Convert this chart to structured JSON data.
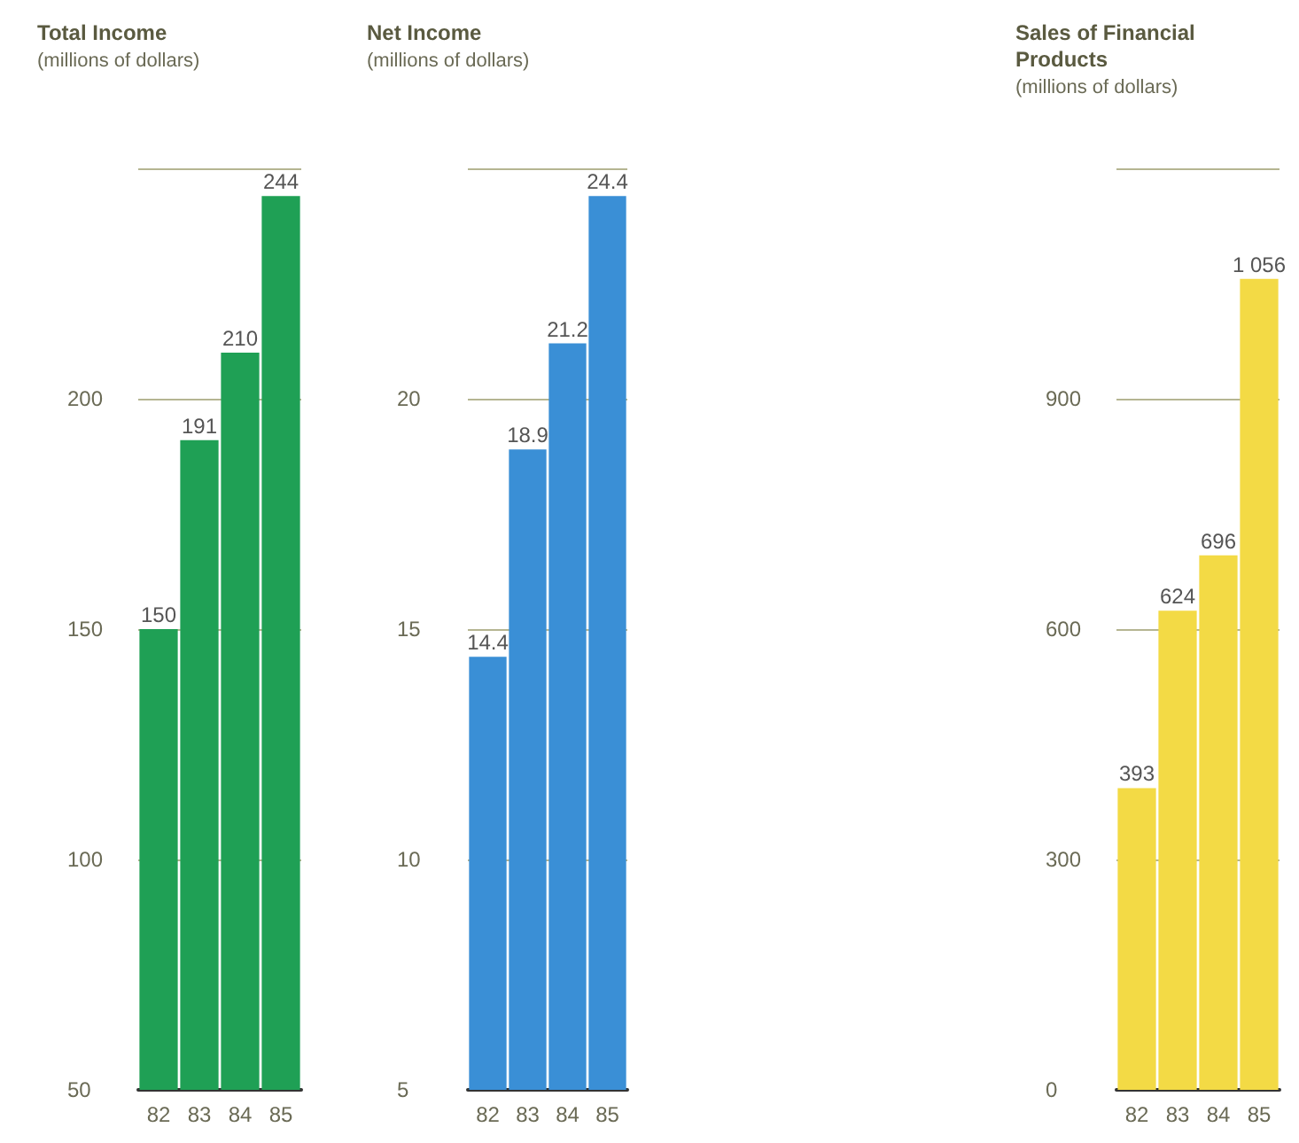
{
  "chart_data": [
    {
      "type": "bar",
      "title": "Total Income",
      "subtitle": "(millions of dollars)",
      "categories": [
        "82",
        "83",
        "84",
        "85"
      ],
      "values": [
        150,
        191,
        210,
        244
      ],
      "color": "#1fa055",
      "ylim": [
        50,
        250
      ],
      "yticks": [
        50,
        100,
        150,
        200,
        {
          "value": 250,
          "label": null
        }
      ],
      "grid": "y",
      "data_labels": true
    },
    {
      "type": "bar",
      "title": "Net Income",
      "subtitle": "(millions of dollars)",
      "categories": [
        "82",
        "83",
        "84",
        "85"
      ],
      "values": [
        14.4,
        18.9,
        21.2,
        24.4
      ],
      "color": "#3a8fd6",
      "ylim": [
        5,
        25
      ],
      "yticks": [
        5,
        10,
        15,
        20,
        {
          "value": 25,
          "label": null
        }
      ],
      "grid": "y",
      "data_labels": true
    },
    {
      "type": "bar",
      "title": "Sales of Financial Products",
      "subtitle": "(millions of dollars)",
      "categories": [
        "82",
        "83",
        "84",
        "85"
      ],
      "values": [
        393,
        624,
        696,
        1056
      ],
      "color": "#f3da45",
      "ylim": [
        0,
        1200
      ],
      "yticks": [
        0,
        300,
        600,
        900,
        {
          "value": 1200,
          "label": null
        }
      ],
      "grid": "y",
      "value_labels": [
        "393",
        "624",
        "696",
        "1 056"
      ]
    }
  ]
}
